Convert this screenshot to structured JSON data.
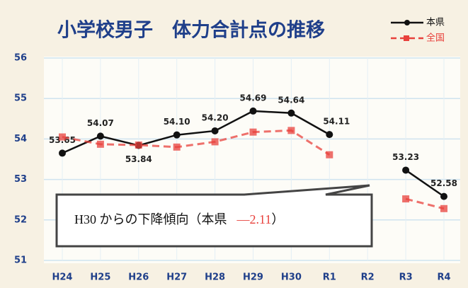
{
  "chart_data": {
    "type": "line",
    "title": "小学校男子　体力合計点の推移",
    "categories": [
      "H24",
      "H25",
      "H26",
      "H27",
      "H28",
      "H29",
      "H30",
      "R1",
      "R2",
      "R3",
      "R4"
    ],
    "series": [
      {
        "name": "本県",
        "color": "#111111",
        "dashed": false,
        "values": [
          53.65,
          54.07,
          53.84,
          54.1,
          54.2,
          54.69,
          54.64,
          54.11,
          null,
          53.23,
          52.58
        ],
        "value_labels": [
          "53.65",
          "54.07",
          "53.84",
          "54.10",
          "54.20",
          "54.69",
          "54.64",
          "54.11",
          null,
          "53.23",
          "52.58"
        ]
      },
      {
        "name": "全国",
        "color": "#e8413c",
        "dashed": true,
        "values": [
          54.05,
          53.87,
          53.85,
          53.8,
          53.93,
          54.17,
          54.21,
          53.61,
          null,
          52.52,
          52.28
        ]
      }
    ],
    "ylim": [
      51,
      56
    ],
    "yticks": [
      51,
      52,
      53,
      54,
      55,
      56
    ],
    "grid": true,
    "annotation": "H30 からの下降傾向（本県",
    "annotation_value": "—2.11",
    "annotation_end": "）"
  }
}
